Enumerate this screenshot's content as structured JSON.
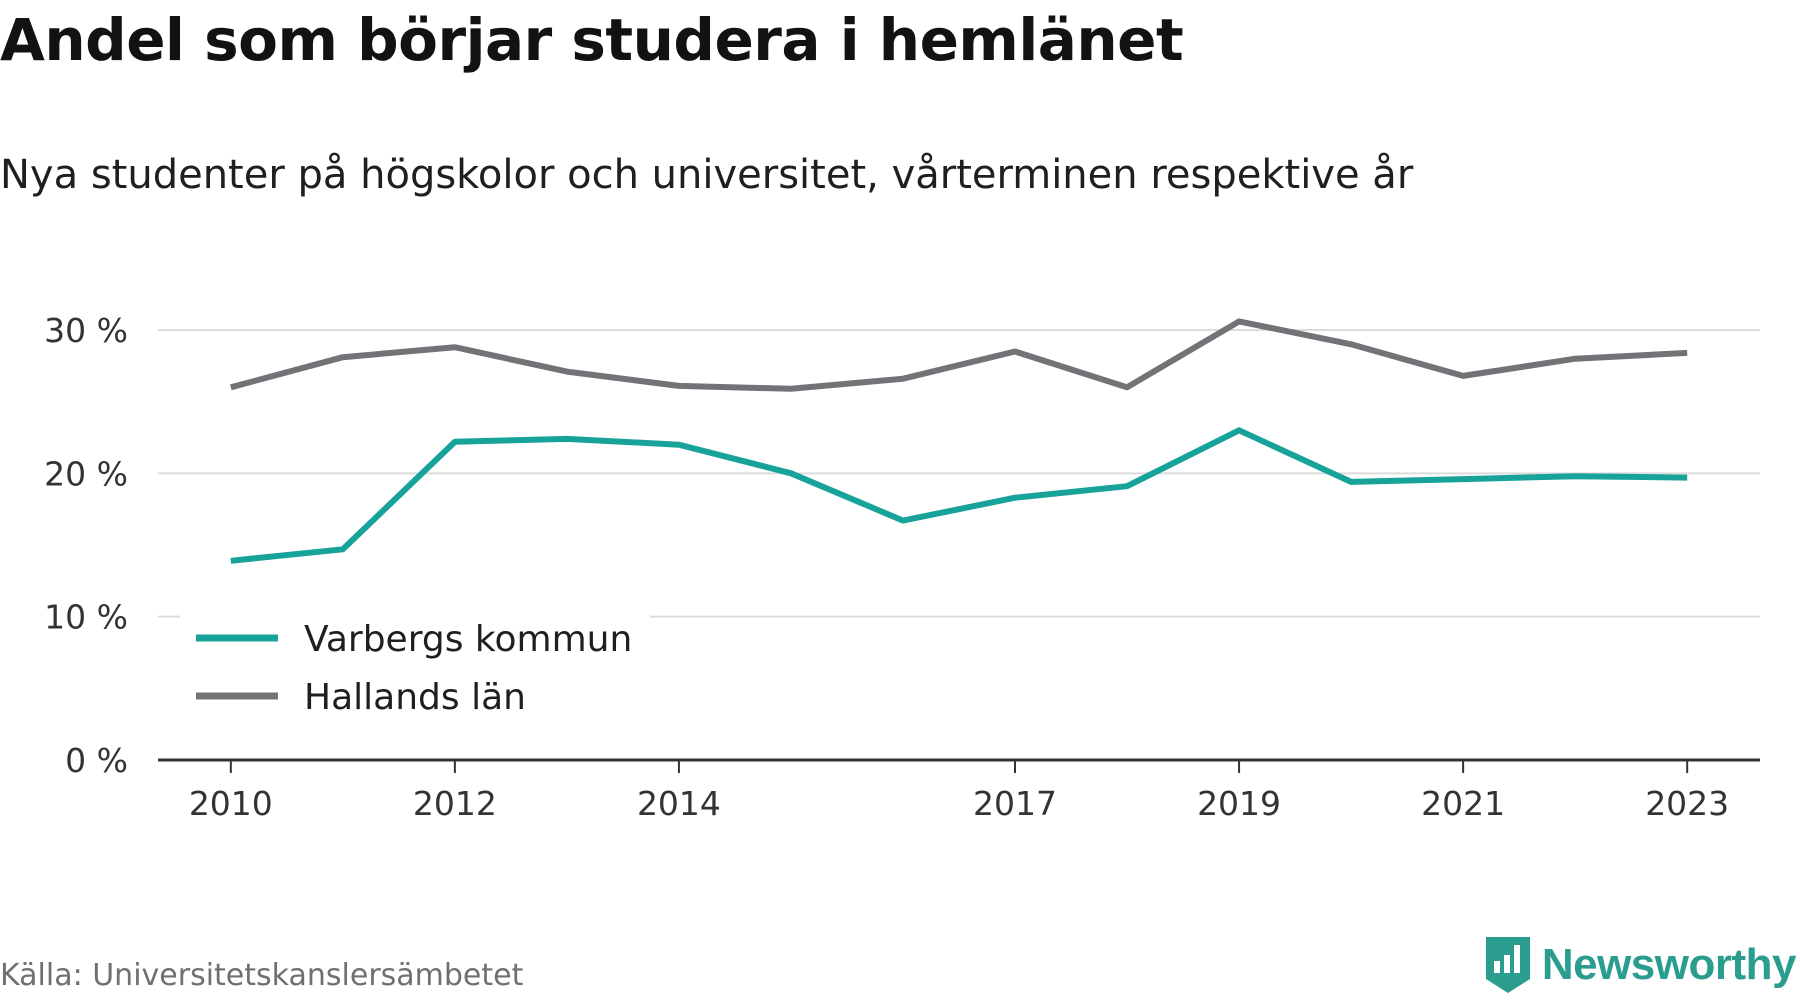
{
  "title": "Andel som börjar studera i hemlänet",
  "subtitle": "Nya studenter på högskolor och universitet, vårterminen respektive år",
  "source": "Källa: Universitetskanslersämbetet",
  "brand": {
    "name": "Newsworthy",
    "color": "#2a9d8f",
    "icon": "newsworthy-logo-icon"
  },
  "colors": {
    "grid": "#dcdcdc",
    "axis": "#333333"
  },
  "chart_data": {
    "type": "line",
    "title": "Andel som börjar studera i hemlänet",
    "subtitle": "Nya studenter på högskolor och universitet, vårterminen respektive år",
    "xlabel": "",
    "ylabel": "",
    "x": [
      2010,
      2011,
      2012,
      2013,
      2014,
      2015,
      2016,
      2017,
      2018,
      2019,
      2020,
      2021,
      2022,
      2023
    ],
    "x_tick_labels": [
      "2010",
      "2012",
      "2014",
      "2017",
      "2019",
      "2021",
      "2023"
    ],
    "x_tick_values": [
      2010,
      2012,
      2014,
      2017,
      2019,
      2021,
      2023
    ],
    "xlim": [
      2009.35,
      2023.65
    ],
    "y_tick_values": [
      0,
      10,
      20,
      30
    ],
    "y_tick_labels": [
      "0 %",
      "10 %",
      "20 %",
      "30 %"
    ],
    "ylim": [
      0,
      30
    ],
    "grid": true,
    "legend_position": "bottom-left",
    "series": [
      {
        "name": "Varbergs kommun",
        "color": "#18a39a",
        "values": [
          13.9,
          14.7,
          22.2,
          22.4,
          22.0,
          20.0,
          16.7,
          18.3,
          19.1,
          23.0,
          19.4,
          19.6,
          19.8,
          19.7
        ]
      },
      {
        "name": "Hallands län",
        "color": "#737277",
        "values": [
          26.0,
          28.1,
          28.8,
          27.1,
          26.1,
          25.9,
          26.6,
          28.5,
          26.0,
          30.6,
          29.0,
          26.8,
          28.0,
          28.4
        ]
      }
    ]
  }
}
